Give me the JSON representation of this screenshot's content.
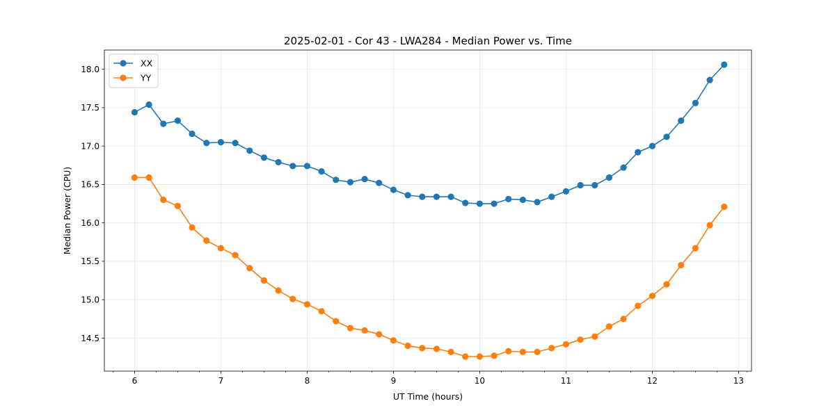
{
  "chart_data": {
    "type": "line",
    "title": "2025-02-01 - Cor 43 - LWA284 - Median Power vs. Time",
    "xlabel": "UT Time (hours)",
    "ylabel": "Median Power (CPU)",
    "xlim": [
      5.65,
      13.15
    ],
    "ylim": [
      14.07,
      18.25
    ],
    "x_major_ticks": [
      6,
      7,
      8,
      9,
      10,
      11,
      12,
      13
    ],
    "x_tick_labels": [
      "6",
      "7",
      "8",
      "9",
      "10",
      "11",
      "12",
      "13"
    ],
    "x_minor_ticks": [
      5.75,
      6.25,
      6.5,
      6.75,
      7.25,
      7.5,
      7.75,
      8.25,
      8.5,
      8.75,
      9.25,
      9.5,
      9.75,
      10.25,
      10.5,
      10.75,
      11.25,
      11.5,
      11.75,
      12.25,
      12.5,
      12.75,
      13.1
    ],
    "y_ticks": [
      14.5,
      15.0,
      15.5,
      16.0,
      16.5,
      17.0,
      17.5,
      18.0
    ],
    "y_tick_labels": [
      "14.5",
      "15.0",
      "15.5",
      "16.0",
      "16.5",
      "17.0",
      "17.5",
      "18.0"
    ],
    "grid": true,
    "legend_position": "top-left",
    "x": [
      6.0,
      6.1667,
      6.3333,
      6.5,
      6.6667,
      6.8333,
      7.0,
      7.1667,
      7.3333,
      7.5,
      7.6667,
      7.8333,
      8.0,
      8.1667,
      8.3333,
      8.5,
      8.6667,
      8.8333,
      9.0,
      9.1667,
      9.3333,
      9.5,
      9.6667,
      9.8333,
      10.0,
      10.1667,
      10.3333,
      10.5,
      10.6667,
      10.8333,
      11.0,
      11.1667,
      11.3333,
      11.5,
      11.6667,
      11.8333,
      12.0,
      12.1667,
      12.3333,
      12.5,
      12.6667,
      12.8333
    ],
    "series": [
      {
        "name": "XX",
        "color": "#1f77b4",
        "values": [
          17.44,
          17.54,
          17.29,
          17.33,
          17.16,
          17.04,
          17.05,
          17.04,
          16.94,
          16.85,
          16.79,
          16.74,
          16.74,
          16.67,
          16.56,
          16.53,
          16.57,
          16.52,
          16.43,
          16.36,
          16.34,
          16.34,
          16.34,
          16.26,
          16.25,
          16.25,
          16.31,
          16.3,
          16.27,
          16.34,
          16.41,
          16.49,
          16.49,
          16.59,
          16.72,
          16.92,
          17.0,
          17.12,
          17.33,
          17.56,
          17.86,
          18.06
        ]
      },
      {
        "name": "YY",
        "color": "#ff7f0e",
        "values": [
          16.59,
          16.59,
          16.3,
          16.22,
          15.94,
          15.77,
          15.67,
          15.58,
          15.41,
          15.25,
          15.12,
          15.01,
          14.94,
          14.85,
          14.72,
          14.63,
          14.6,
          14.55,
          14.47,
          14.4,
          14.37,
          14.36,
          14.32,
          14.26,
          14.26,
          14.27,
          14.33,
          14.32,
          14.32,
          14.37,
          14.42,
          14.48,
          14.52,
          14.65,
          14.75,
          14.92,
          15.05,
          15.2,
          15.45,
          15.67,
          15.97,
          16.21
        ]
      }
    ]
  }
}
